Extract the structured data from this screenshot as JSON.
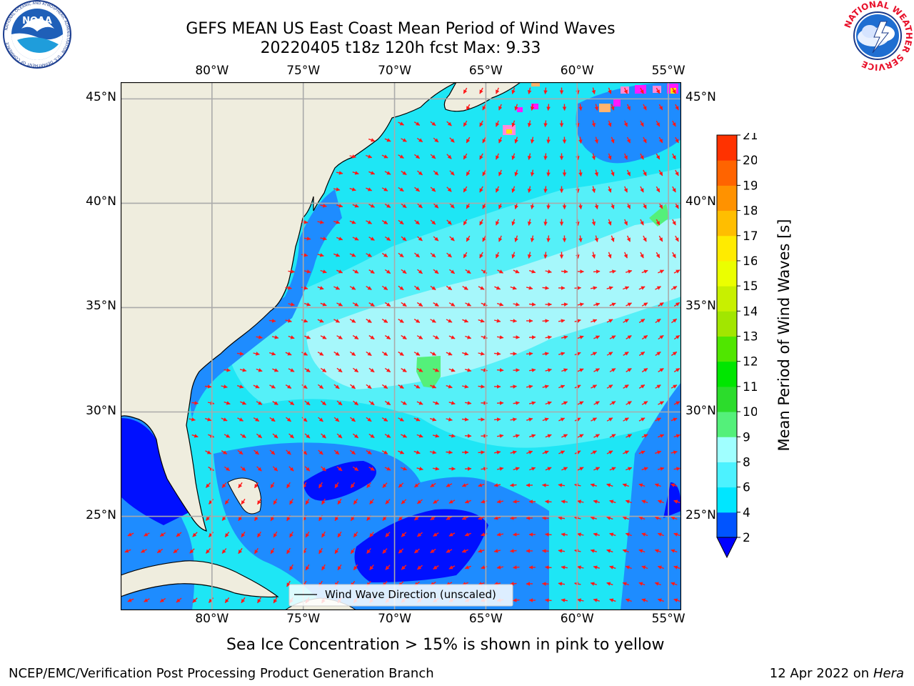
{
  "header": {
    "title_line1": "GEFS MEAN US East Coast Mean Period of Wind Waves",
    "title_line2": "20220405 t18z 120h fcst   Max: 9.33"
  },
  "logos": {
    "left": {
      "name": "noaa-logo",
      "text": "NOAA",
      "ring_text": "NATIONAL OCEANIC AND ATMOSPHERIC ADMINISTRATION · U.S. DEPARTMENT OF COMMERCE"
    },
    "right": {
      "name": "nws-logo",
      "ring_text": "NATIONAL WEATHER SERVICE"
    }
  },
  "map": {
    "lon_labels_top": [
      "80°W",
      "75°W",
      "70°W",
      "65°W",
      "60°W",
      "55°W"
    ],
    "lon_labels_bottom": [
      "80°W",
      "75°W",
      "70°W",
      "65°W",
      "60°W",
      "55°W"
    ],
    "lat_labels_left": [
      "45°N",
      "40°N",
      "35°N",
      "30°N",
      "25°N"
    ],
    "lat_labels_right": [
      "45°N",
      "40°N",
      "35°N",
      "30°N",
      "25°N"
    ],
    "lon_values": [
      -80,
      -75,
      -70,
      -65,
      -60,
      -55
    ],
    "lat_values": [
      45,
      40,
      35,
      30,
      25
    ],
    "extent": {
      "lon_min": -85,
      "lon_max": -54.3,
      "lat_min": 20.5,
      "lat_max": 45.8
    },
    "legend_label": "Wind Wave Direction (unscaled)",
    "land_color": "#efedde",
    "arrow_color": "#ff1a1a"
  },
  "colorbar": {
    "label": "Mean Period of Wind Waves [s]",
    "ticks": [
      "2",
      "4",
      "6",
      "8",
      "9",
      "10",
      "11",
      "12",
      "13",
      "14",
      "15",
      "16",
      "17",
      "18",
      "19",
      "20",
      "21"
    ],
    "colors": [
      "#0054ff",
      "#00e6ff",
      "#4cf2ff",
      "#a0ffff",
      "#54f07a",
      "#2cdc2c",
      "#00e600",
      "#50e600",
      "#a2e600",
      "#c8f000",
      "#ebff00",
      "#ffeb00",
      "#ffbe00",
      "#ff9200",
      "#ff6400",
      "#ff3200",
      "#ff0000"
    ],
    "under_color": "#0000ff"
  },
  "notes": {
    "sea_ice": "Sea Ice Concentration > 15% is shown in pink to yellow"
  },
  "footer": {
    "left": "NCEP/EMC/Verification Post Processing Product Generation Branch",
    "right_prefix": "12 Apr 2022 on ",
    "right_italic": "Hera"
  }
}
